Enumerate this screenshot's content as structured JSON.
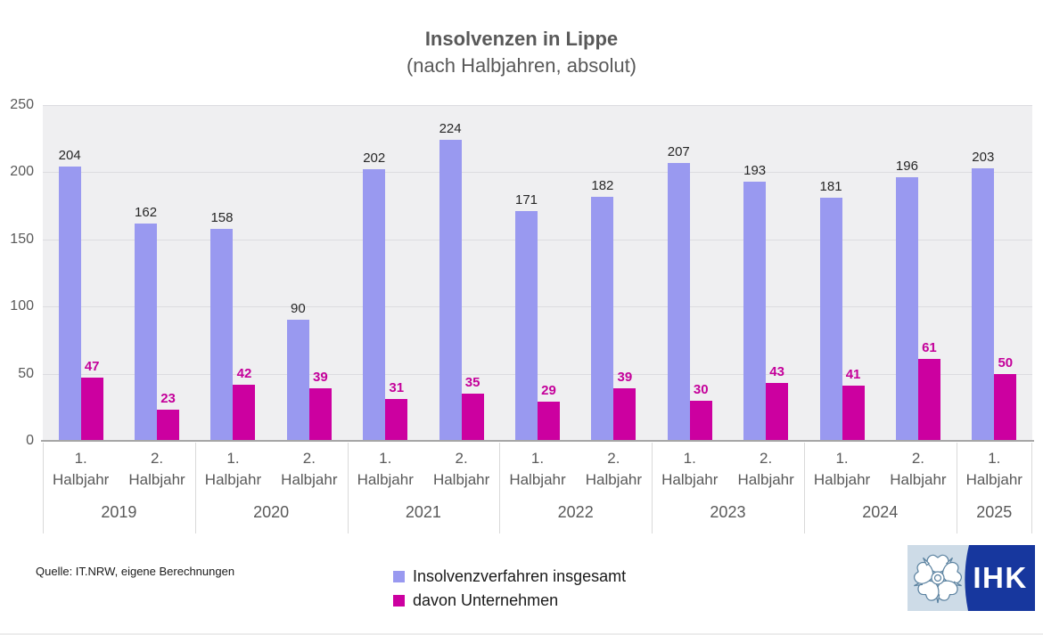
{
  "chart_data": {
    "type": "bar",
    "title": "Insolvenzen in Lippe",
    "subtitle": "(nach Halbjahren, absolut)",
    "ylim": [
      0,
      250
    ],
    "yticks": [
      0,
      50,
      100,
      150,
      200,
      250
    ],
    "grid": true,
    "legend_position": "bottom",
    "half_label_word": "Halbjahr",
    "groups": [
      {
        "year": "2019",
        "halves": [
          {
            "no": "1.",
            "total": 204,
            "companies": 47
          },
          {
            "no": "2.",
            "total": 162,
            "companies": 23
          }
        ]
      },
      {
        "year": "2020",
        "halves": [
          {
            "no": "1.",
            "total": 158,
            "companies": 42
          },
          {
            "no": "2.",
            "total": 90,
            "companies": 39
          }
        ]
      },
      {
        "year": "2021",
        "halves": [
          {
            "no": "1.",
            "total": 202,
            "companies": 31
          },
          {
            "no": "2.",
            "total": 224,
            "companies": 35
          }
        ]
      },
      {
        "year": "2022",
        "halves": [
          {
            "no": "1.",
            "total": 171,
            "companies": 29
          },
          {
            "no": "2.",
            "total": 182,
            "companies": 39
          }
        ]
      },
      {
        "year": "2023",
        "halves": [
          {
            "no": "1.",
            "total": 207,
            "companies": 30
          },
          {
            "no": "2.",
            "total": 193,
            "companies": 43
          }
        ]
      },
      {
        "year": "2024",
        "halves": [
          {
            "no": "1.",
            "total": 181,
            "companies": 41
          },
          {
            "no": "2.",
            "total": 196,
            "companies": 61
          }
        ]
      },
      {
        "year": "2025",
        "halves": [
          {
            "no": "1.",
            "total": 203,
            "companies": 50
          }
        ]
      }
    ],
    "series": [
      {
        "name": "Insolvenzverfahren insgesamt",
        "color": "#9999f0",
        "label_color": "#262626"
      },
      {
        "name": "davon Unternehmen",
        "color": "#cc00a0",
        "label_color": "#c4009a"
      }
    ]
  },
  "source": "Quelle: IT.NRW, eigene Berechnungen",
  "logo": {
    "text": "IHK",
    "dark_blue": "#17379e",
    "light_blue": "#cddbe7",
    "rose_outline": "#5b82a0"
  },
  "colors": {
    "title_text": "#595959",
    "axis_text": "#595959",
    "plot_bg": "#efeff1",
    "gridline": "#dcdce0",
    "axis_line": "#a6a6a6",
    "separator": "#d9d9d9"
  }
}
